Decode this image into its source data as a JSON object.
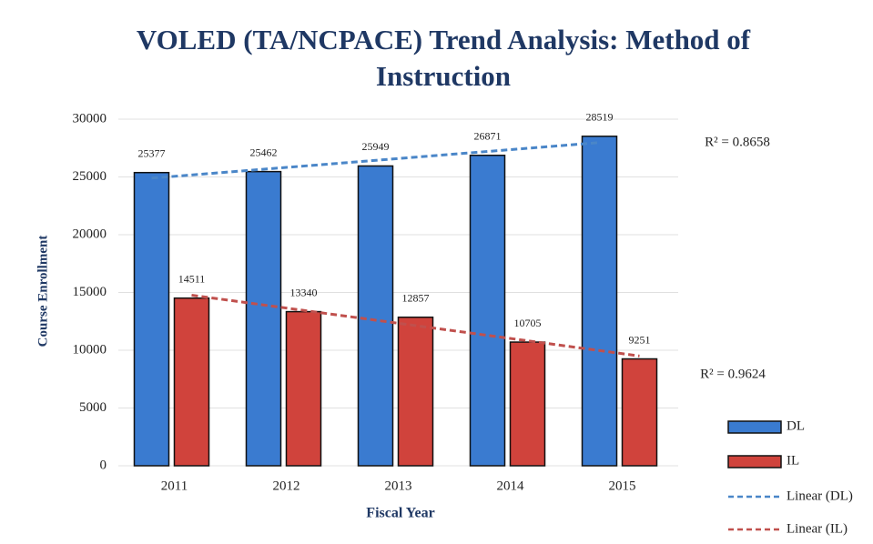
{
  "chart_data": {
    "type": "bar",
    "title": "VOLED (TA/NCPACE) Trend Analysis: Method of Instruction",
    "x_label": "Fiscal Year",
    "y_label": "Course Enrollment",
    "categories": [
      "2011",
      "2012",
      "2013",
      "2014",
      "2015"
    ],
    "series": [
      {
        "name": "DL",
        "color": "#3a7bd0",
        "values": [
          25377,
          25462,
          25949,
          26871,
          28519
        ]
      },
      {
        "name": "IL",
        "color": "#d0433c",
        "values": [
          14511,
          13340,
          12857,
          10705,
          9251
        ]
      }
    ],
    "trendlines": [
      {
        "name": "Linear (DL)",
        "color": "#4a86c8",
        "annotation": "R² = 0.8658"
      },
      {
        "name": "Linear (IL)",
        "color": "#c0504d",
        "annotation": "R² = 0.9624"
      }
    ],
    "ylim": [
      0,
      30000
    ],
    "yticks": [
      0,
      5000,
      10000,
      15000,
      20000,
      25000,
      30000
    ],
    "grid": true
  }
}
